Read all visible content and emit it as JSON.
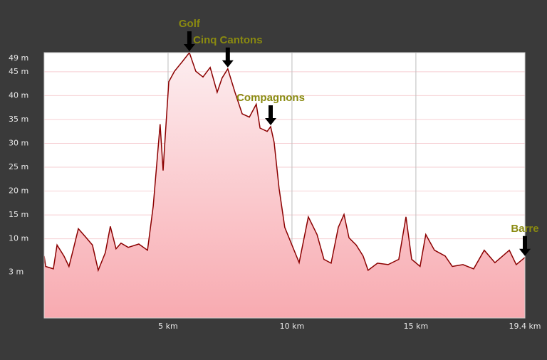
{
  "chart_data": {
    "type": "area",
    "series": [
      {
        "color": "#8b0000",
        "x": [
          0,
          0.06,
          0.37,
          0.52,
          0.8,
          1.0,
          1.18,
          1.38,
          1.67,
          1.95,
          2.18,
          2.47,
          2.67,
          2.9,
          3.1,
          3.39,
          3.82,
          4.17,
          4.4,
          4.68,
          4.8,
          4.89,
          5.03,
          5.26,
          5.54,
          5.86,
          6.12,
          6.41,
          6.7,
          6.98,
          7.18,
          7.41,
          7.7,
          7.99,
          8.28,
          8.56,
          8.71,
          9.0,
          9.14,
          9.28,
          9.48,
          9.71,
          10.0,
          10.29,
          10.66,
          11.01,
          11.29,
          11.58,
          11.87,
          12.1,
          12.3,
          12.59,
          12.87,
          13.07,
          13.45,
          13.88,
          14.31,
          14.6,
          14.83,
          15.17,
          15.4,
          15.75,
          16.18,
          16.47,
          16.9,
          17.33,
          17.76,
          18.19,
          18.77,
          19.05,
          19.4
        ],
        "values": [
          6.4,
          4.2,
          3.7,
          8.7,
          6.4,
          4.2,
          7.9,
          12.1,
          10.4,
          8.7,
          3.4,
          7.1,
          12.6,
          7.9,
          9.1,
          8.2,
          8.9,
          7.6,
          16.8,
          34,
          24.3,
          31.7,
          42.9,
          45.1,
          46.9,
          49,
          45.1,
          43.9,
          45.9,
          40.7,
          43.7,
          45.6,
          40.7,
          36.2,
          35.5,
          38.2,
          33.2,
          32.5,
          33.5,
          30.2,
          20.6,
          12.4,
          8.7,
          5,
          14.6,
          10.9,
          5.7,
          4.9,
          12.4,
          15.1,
          10.2,
          8.7,
          6.4,
          3.4,
          4.9,
          4.6,
          5.7,
          14.6,
          5.7,
          4.2,
          10.9,
          7.6,
          6.4,
          4.2,
          4.6,
          3.7,
          7.6,
          5,
          7.6,
          4.6,
          6.1
        ]
      }
    ],
    "xlim": [
      0,
      19.4
    ],
    "xticks": [
      {
        "value": 5,
        "label": "5 km"
      },
      {
        "value": 10,
        "label": "10 km"
      },
      {
        "value": 15,
        "label": "15 km"
      },
      {
        "value": 19.4,
        "label": "19.4 km"
      }
    ],
    "ylim": [
      -6.6,
      49
    ],
    "yticks": [
      {
        "value": 3,
        "label": "3 m"
      },
      {
        "value": 10,
        "label": "10 m"
      },
      {
        "value": 15,
        "label": "15 m"
      },
      {
        "value": 20,
        "label": "20 m"
      },
      {
        "value": 25,
        "label": "25 m"
      },
      {
        "value": 30,
        "label": "30 m"
      },
      {
        "value": 35,
        "label": "35 m"
      },
      {
        "value": 40,
        "label": "40 m"
      },
      {
        "value": 45,
        "label": "45 m"
      },
      {
        "value": 49,
        "label": "49 m"
      }
    ],
    "annotations": [
      {
        "text": "Golf",
        "x": 5.86
      },
      {
        "text": "Cinq Cantons",
        "x": 7.41
      },
      {
        "text": "Compagnons",
        "x": 9.14
      },
      {
        "text": "Barre",
        "x": 19.4
      }
    ]
  }
}
